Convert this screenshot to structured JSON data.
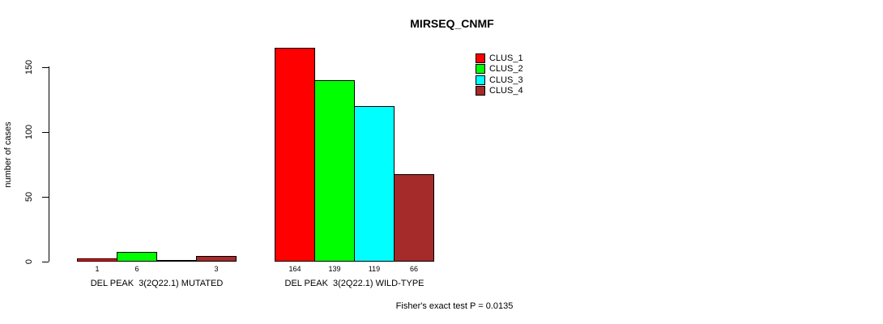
{
  "chart_data": {
    "type": "bar",
    "title": "MIRSEQ_CNMF",
    "ylabel": "number of cases",
    "ylim": [
      0,
      150
    ],
    "yticks": [
      0,
      50,
      100,
      150
    ],
    "grid": false,
    "legend_position": "top-right-inside",
    "bar_outline_color": "#000000",
    "legend": [
      {
        "label": "CLUS_1",
        "color": "#ff0000"
      },
      {
        "label": "CLUS_2",
        "color": "#00ff00"
      },
      {
        "label": "CLUS_3",
        "color": "#00ffff"
      },
      {
        "label": "CLUS_4",
        "color": "#a52a2a"
      }
    ],
    "groups": [
      {
        "label": "DEL PEAK  3(2Q22.1) MUTATED",
        "values": [
          1,
          6,
          0,
          3
        ],
        "value_labels": [
          "1",
          "6",
          "",
          "3"
        ]
      },
      {
        "label": "DEL PEAK  3(2Q22.1) WILD-TYPE",
        "values": [
          164,
          139,
          119,
          66
        ],
        "value_labels": [
          "164",
          "139",
          "119",
          "66"
        ]
      }
    ],
    "annotation": "Fisher's exact test P = 0.0135"
  }
}
